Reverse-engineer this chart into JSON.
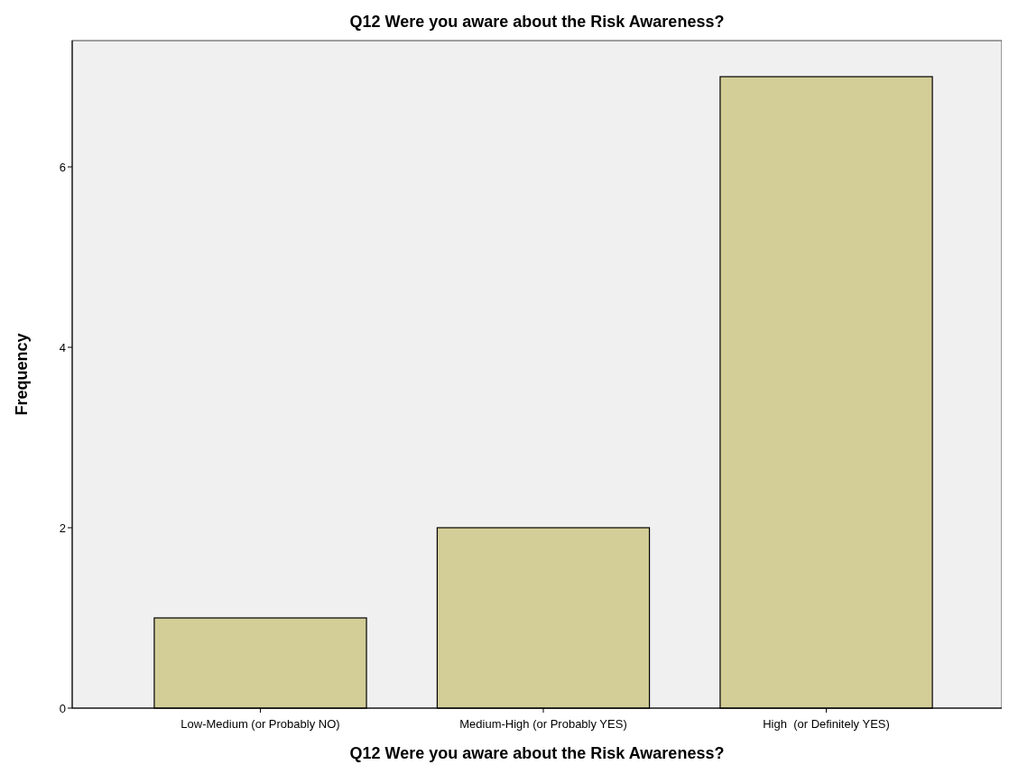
{
  "chart_data": {
    "type": "bar",
    "title": "Q12 Were you aware about the Risk Awareness?",
    "xlabel": "Q12 Were you aware about the Risk Awareness?",
    "ylabel": "Frequency",
    "categories": [
      "Low-Medium (or Probably NO)",
      "Medium-High (or Probably YES)",
      "High  (or Definitely YES)"
    ],
    "values": [
      1,
      2,
      7
    ],
    "color": "#d3ce97",
    "ylim": [
      0,
      7.4
    ],
    "yticks": [
      0,
      2,
      4,
      6
    ],
    "grid": false
  }
}
